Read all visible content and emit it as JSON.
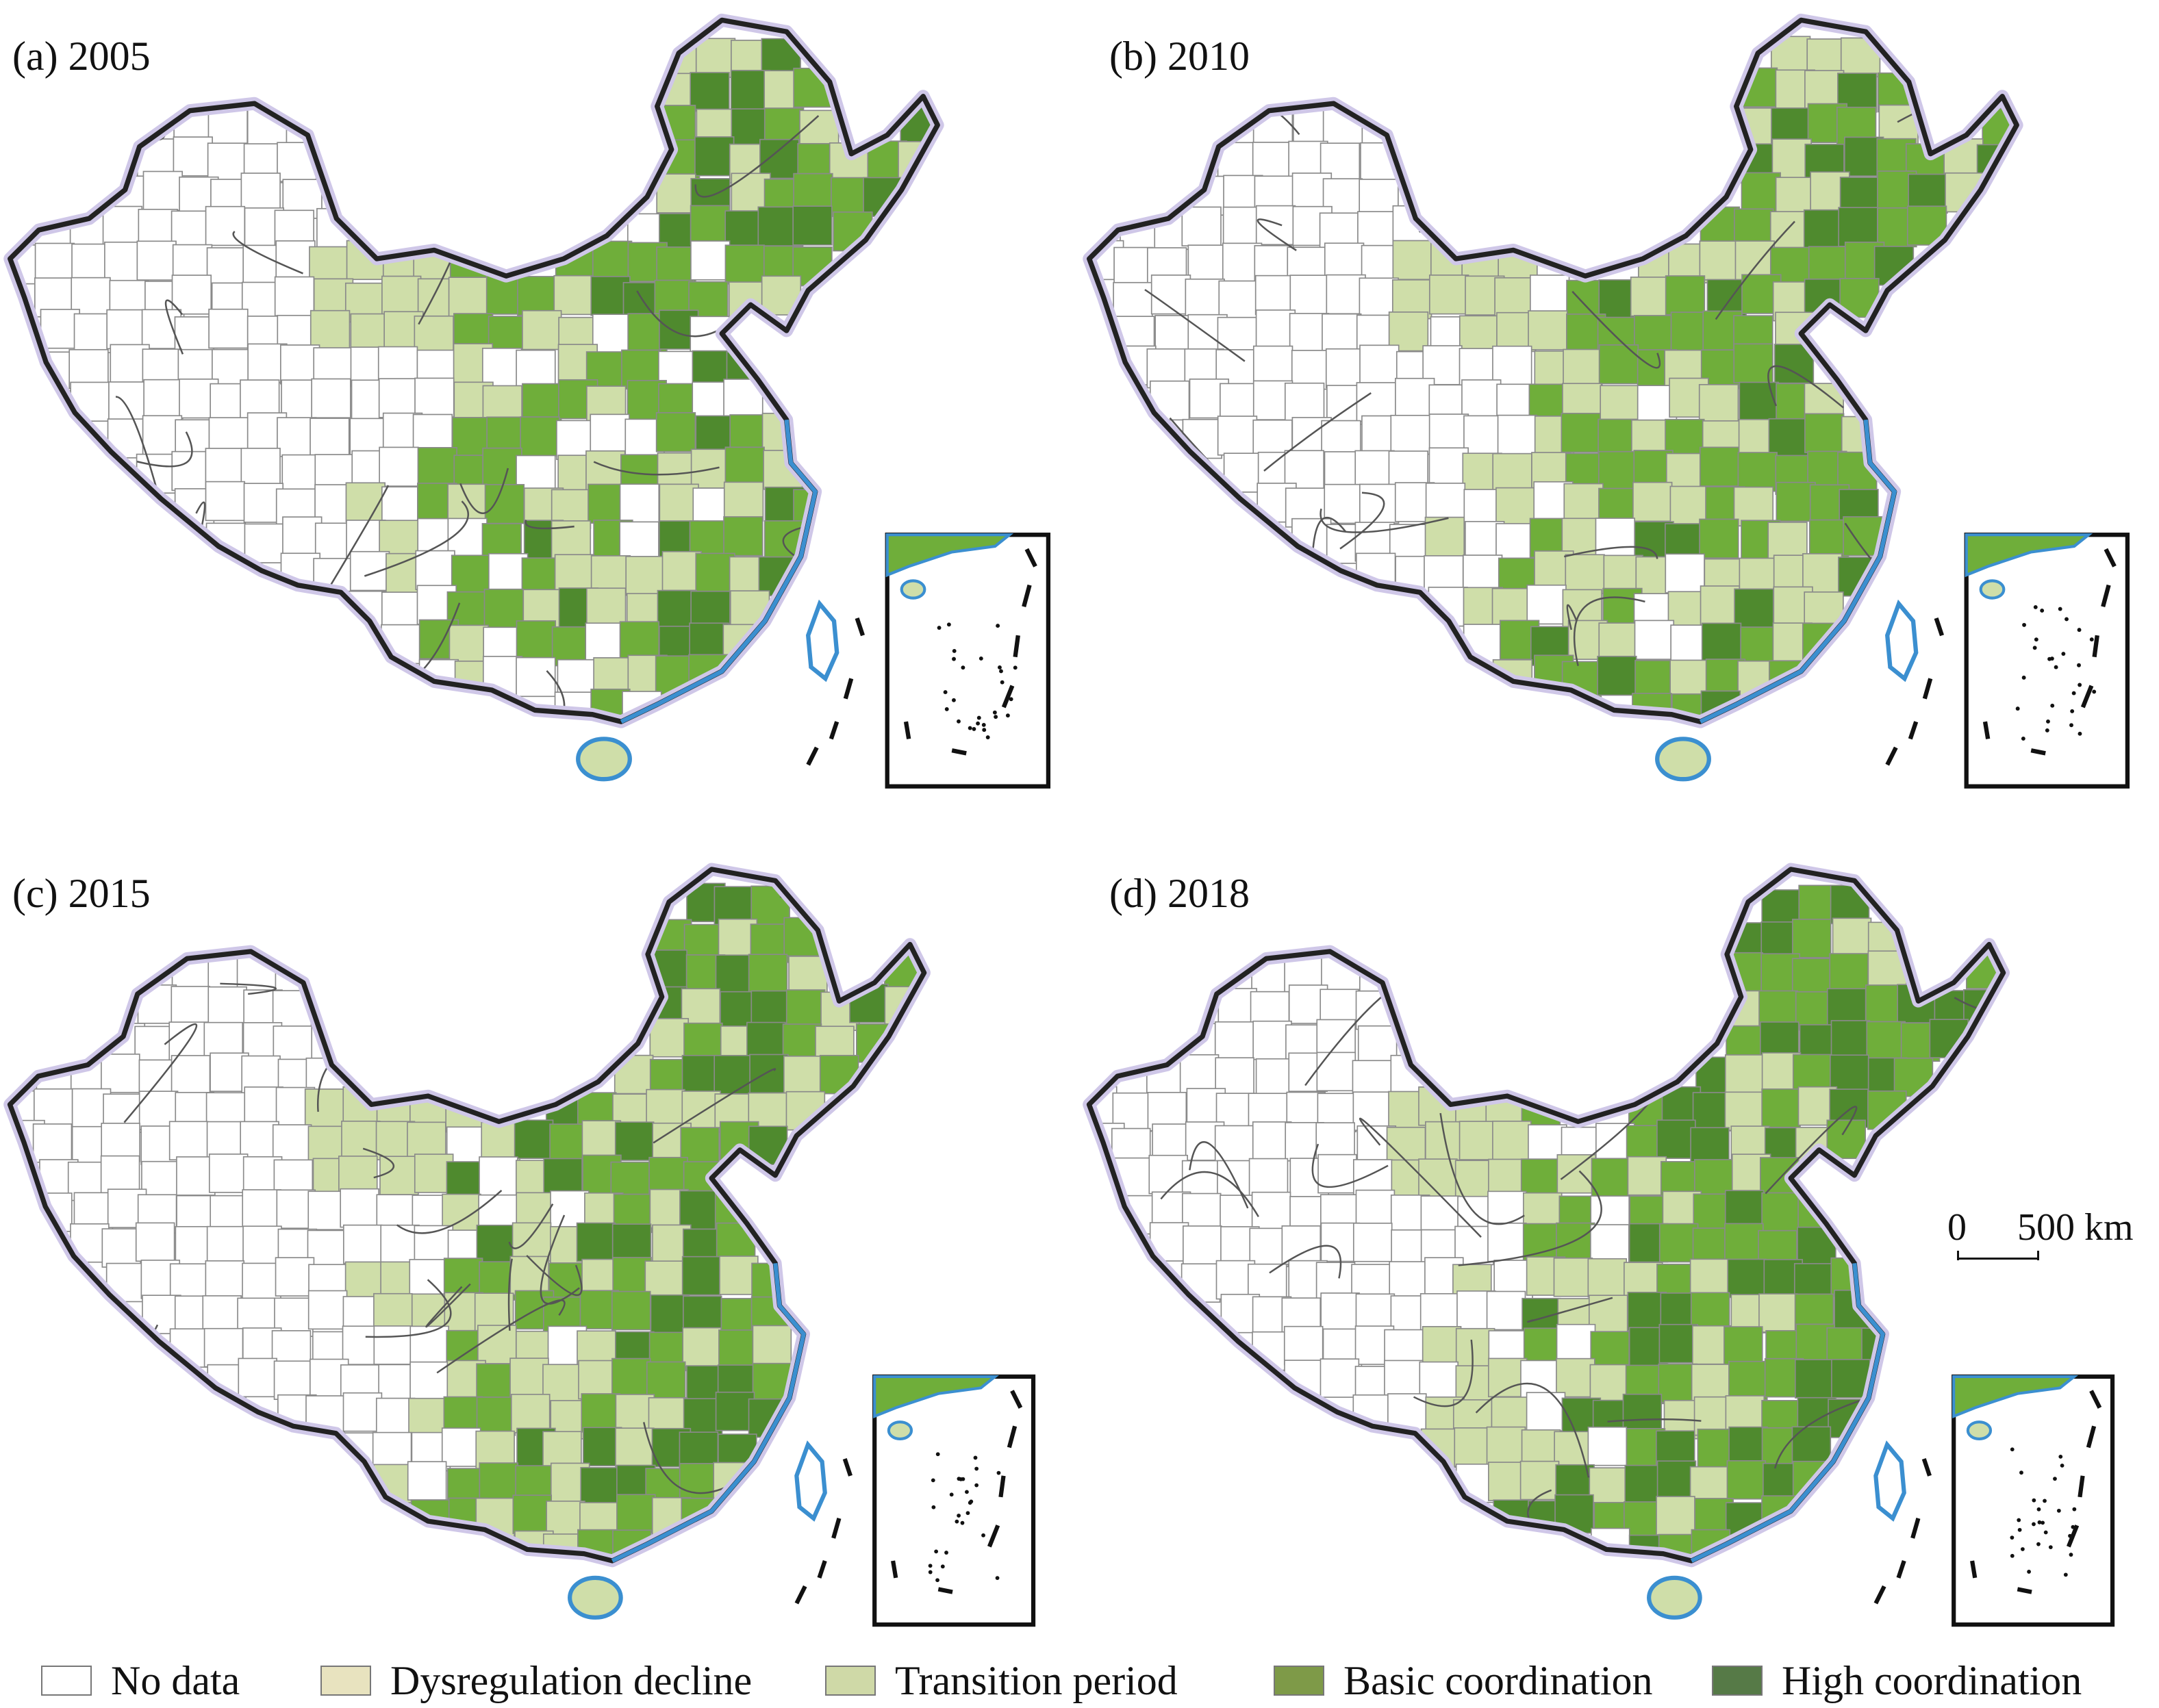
{
  "panels": [
    {
      "id": "a",
      "label": "(a) 2005",
      "variant": 0
    },
    {
      "id": "b",
      "label": "(b) 2010",
      "variant": 1
    },
    {
      "id": "c",
      "label": "(c) 2015",
      "variant": 2
    },
    {
      "id": "d",
      "label": "(d) 2018",
      "variant": 3
    }
  ],
  "scale": {
    "zero": "0",
    "distance": "500 km"
  },
  "legend": [
    {
      "label": "No data",
      "color": "#ffffff"
    },
    {
      "label": "Dysregulation decline",
      "color": "#e8e3bf"
    },
    {
      "label": "Transition period",
      "color": "#cfd9a7"
    },
    {
      "label": "Basic coordination",
      "color": "#7e9a48"
    },
    {
      "label": "High coordination",
      "color": "#567a47"
    }
  ],
  "colors": {
    "no_data": "#ffffff",
    "transition_light": "#cfdea9",
    "green_medium": "#6fae3a",
    "green_dark": "#4f8a2e",
    "coast": "#3b8fd0",
    "boundary": "#222222"
  }
}
